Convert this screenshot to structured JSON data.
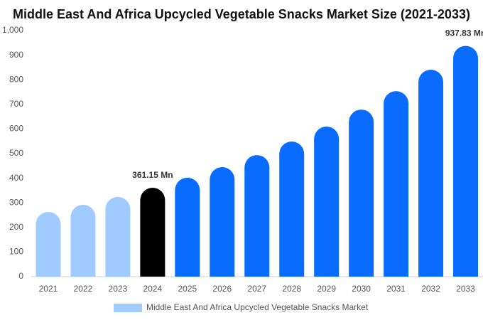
{
  "chart_data": {
    "type": "bar",
    "title": "Middle East And Africa Upcycled Vegetable Snacks Market Size (2021-2033)",
    "categories": [
      "2021",
      "2022",
      "2023",
      "2024",
      "2025",
      "2026",
      "2027",
      "2028",
      "2029",
      "2030",
      "2031",
      "2032",
      "2033"
    ],
    "series": [
      {
        "name": "Middle East And Africa Upcycled Vegetable Snacks Market",
        "color": "#9fcbff",
        "values": [
          263,
          292,
          324,
          361.15,
          402,
          445,
          494,
          549,
          610,
          679,
          754,
          841,
          937.83
        ],
        "value_labels": [
          null,
          null,
          null,
          "361.15 Mn",
          null,
          null,
          null,
          null,
          null,
          null,
          null,
          null,
          "937.83 Mn"
        ],
        "colors": [
          "#9fcbff",
          "#9fcbff",
          "#9fcbff",
          "#000000",
          "#0a6cff",
          "#0a6cff",
          "#0a6cff",
          "#0a6cff",
          "#0a6cff",
          "#0a6cff",
          "#0a6cff",
          "#0a6cff",
          "#0a6cff"
        ]
      }
    ],
    "ylim": [
      0,
      1000
    ],
    "yticks": [
      0,
      100,
      200,
      300,
      400,
      500,
      600,
      700,
      800,
      900,
      {
        "value": 1000,
        "label": "1,000"
      }
    ],
    "grid": false
  }
}
